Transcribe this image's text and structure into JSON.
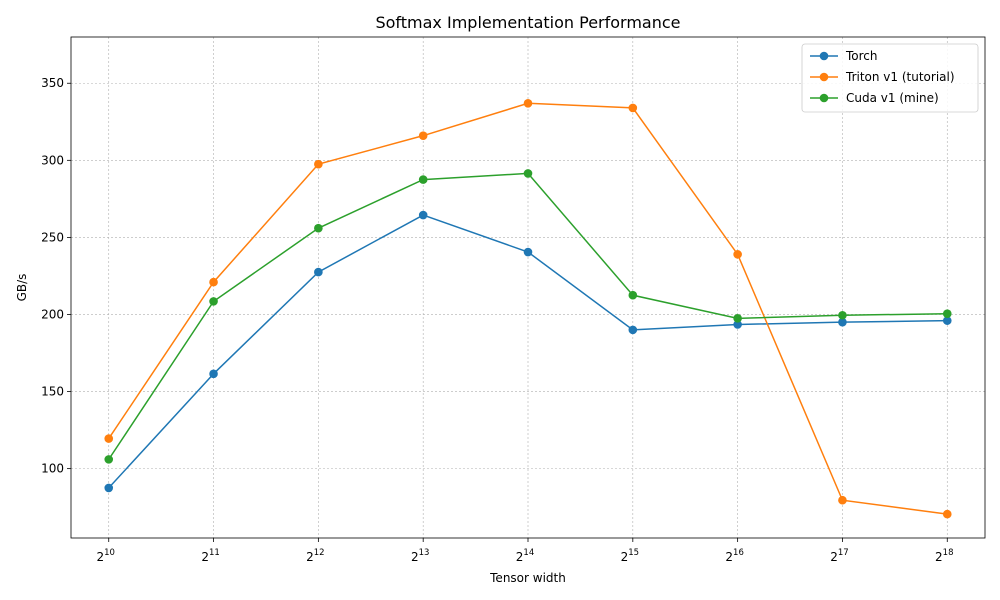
{
  "chart_data": {
    "type": "line",
    "title": "Softmax Implementation Performance",
    "xlabel": "Tensor width",
    "ylabel": "GB/s",
    "x_scale": "log2",
    "x": [
      1024,
      2048,
      4096,
      8192,
      16384,
      32768,
      65536,
      131072,
      262144
    ],
    "x_tick_labels": [
      {
        "base": "2",
        "exp": "10"
      },
      {
        "base": "2",
        "exp": "11"
      },
      {
        "base": "2",
        "exp": "12"
      },
      {
        "base": "2",
        "exp": "13"
      },
      {
        "base": "2",
        "exp": "14"
      },
      {
        "base": "2",
        "exp": "15"
      },
      {
        "base": "2",
        "exp": "16"
      },
      {
        "base": "2",
        "exp": "17"
      },
      {
        "base": "2",
        "exp": "18"
      }
    ],
    "ylim": [
      55,
      380
    ],
    "y_ticks": [
      100,
      150,
      200,
      250,
      300,
      350
    ],
    "grid": true,
    "legend_position": "top-right",
    "series": [
      {
        "name": "Torch",
        "color": "#1f77b4",
        "values": [
          87.5,
          161.5,
          227.5,
          264.5,
          240.5,
          190,
          193.5,
          195,
          196
        ]
      },
      {
        "name": "Triton v1 (tutorial)",
        "color": "#ff7f0e",
        "values": [
          119.5,
          221,
          297.5,
          316,
          337,
          334,
          239,
          79.5,
          70.5
        ]
      },
      {
        "name": "Cuda v1 (mine)",
        "color": "#2ca02c",
        "values": [
          106,
          208.5,
          256,
          287.5,
          291.5,
          212.5,
          197.5,
          199.5,
          200.5
        ]
      }
    ]
  }
}
